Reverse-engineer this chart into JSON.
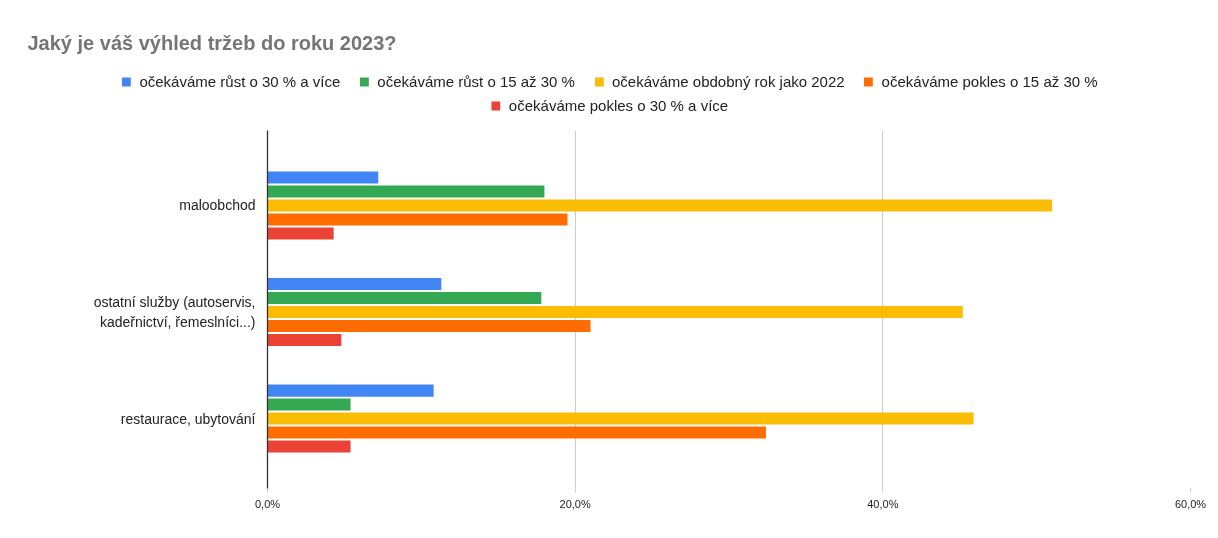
{
  "chart_data": {
    "type": "bar",
    "orientation": "horizontal",
    "title": "Jaký je váš výhled tržeb do roku 2023?",
    "categories": [
      "maloobchod",
      "ostatní služby (autoservis, kadeřnictví, řemeslníci...)",
      "restaurace, ubytování"
    ],
    "series": [
      {
        "name": "očekáváme růst o 30 % a více",
        "color": "#4285f4",
        "values": [
          7.2,
          11.3,
          10.8
        ]
      },
      {
        "name": "očekáváme růst o 15 až 30 %",
        "color": "#34a853",
        "values": [
          18.0,
          17.8,
          5.4
        ]
      },
      {
        "name": "očekáváme obdobný rok jako 2022",
        "color": "#fbbc04",
        "values": [
          51.0,
          45.2,
          45.9
        ]
      },
      {
        "name": "očekáváme pokles o 15 až 30 %",
        "color": "#ff6d01",
        "values": [
          19.5,
          21.0,
          32.4
        ]
      },
      {
        "name": "očekáváme pokles o 30 % a více",
        "color": "#ea4335",
        "values": [
          4.3,
          4.8,
          5.4
        ]
      }
    ],
    "xlim": [
      0,
      60
    ],
    "xticks": [
      {
        "value": 0,
        "label": "0,0%"
      },
      {
        "value": 20,
        "label": "20,0%"
      },
      {
        "value": 40,
        "label": "40,0%"
      },
      {
        "value": 60,
        "label": "60,0%"
      }
    ],
    "grid": "x",
    "legend": "top"
  }
}
